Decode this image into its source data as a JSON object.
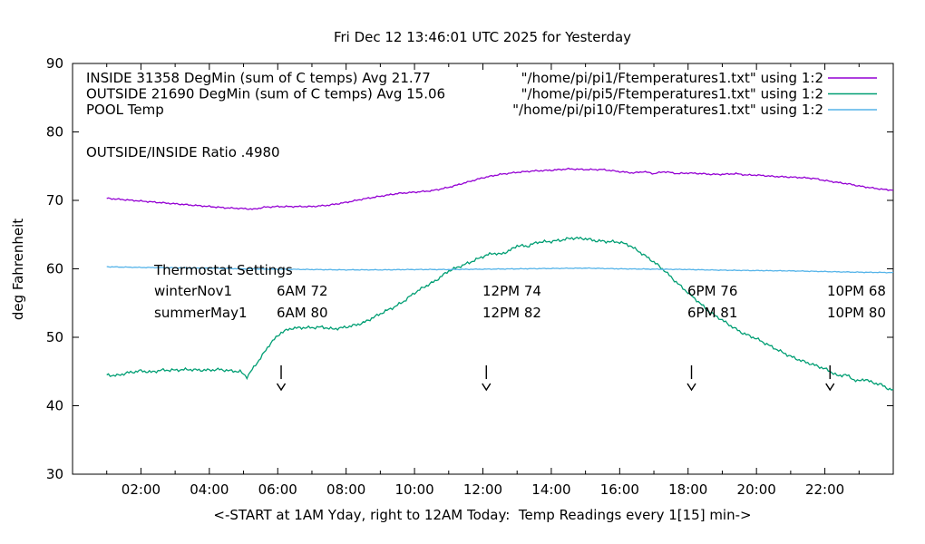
{
  "title": "Fri Dec 12 13:46:01 UTC 2025 for Yesterday",
  "colors": {
    "inside": "#9400d3",
    "outside": "#009e73",
    "pool": "#56b4e9",
    "axis": "#000000"
  },
  "legend": {
    "rows": [
      {
        "label": "INSIDE 31358 DegMin (sum of C temps) Avg 21.77",
        "file": "\"/home/pi/pi1/Ftemperatures1.txt\" using 1:2",
        "series": "inside"
      },
      {
        "label": "OUTSIDE 21690 DegMin (sum of C temps) Avg 15.06",
        "file": "\"/home/pi/pi5/Ftemperatures1.txt\" using 1:2",
        "series": "outside"
      },
      {
        "label": "POOL Temp",
        "file": "\"/home/pi/pi10/Ftemperatures1.txt\" using 1:2",
        "series": "pool"
      }
    ]
  },
  "annotations": {
    "ratio": "OUTSIDE/INSIDE Ratio .4980",
    "thermostat_title": "Thermostat Settings",
    "rows": [
      {
        "name": "winterNov1",
        "c1": "6AM 72",
        "c2": "12PM 74",
        "c3": "6PM 76",
        "c4": "10PM 68"
      },
      {
        "name": "summerMay1",
        "c1": "6AM 80",
        "c2": "12PM 82",
        "c3": "6PM 81",
        "c4": "10PM 80"
      }
    ]
  },
  "axes": {
    "ylabel": "deg Fahrenheit",
    "xlabel": "<-START at 1AM Yday, right to 12AM Today:  Temp Readings every 1[15] min->",
    "xticks": [
      {
        "t": 2,
        "label": "02:00"
      },
      {
        "t": 4,
        "label": "04:00"
      },
      {
        "t": 6,
        "label": "06:00"
      },
      {
        "t": 8,
        "label": "08:00"
      },
      {
        "t": 10,
        "label": "10:00"
      },
      {
        "t": 12,
        "label": "12:00"
      },
      {
        "t": 14,
        "label": "14:00"
      },
      {
        "t": 16,
        "label": "16:00"
      },
      {
        "t": 18,
        "label": "18:00"
      },
      {
        "t": 20,
        "label": "20:00"
      },
      {
        "t": 22,
        "label": "22:00"
      }
    ],
    "yticks": [
      {
        "v": 30,
        "label": "30"
      },
      {
        "v": 40,
        "label": "40"
      },
      {
        "v": 50,
        "label": "50"
      },
      {
        "v": 60,
        "label": "60"
      },
      {
        "v": 70,
        "label": "70"
      },
      {
        "v": 80,
        "label": "80"
      },
      {
        "v": 90,
        "label": "90"
      }
    ]
  },
  "chart_data": {
    "type": "line",
    "title": "Fri Dec 12 13:46:01 UTC 2025 for Yesterday",
    "xlabel": "<-START at 1AM Yday, right to 12AM Today:  Temp Readings every 1[15] min->",
    "ylabel": "deg Fahrenheit",
    "x_unit": "hour of yesterday (1 = 1AM, 24 = midnight)",
    "xlim": [
      0,
      24
    ],
    "ylim": [
      30,
      90
    ],
    "grid": false,
    "legend_position": "top inside, file names right-aligned",
    "series": [
      {
        "id": "inside",
        "name": "INSIDE 31358 DegMin (sum of C temps) Avg 21.77",
        "color": "#9400d3",
        "noise": 1.0,
        "points": [
          [
            1,
            70.3
          ],
          [
            1.5,
            70.1
          ],
          [
            2,
            69.9
          ],
          [
            2.5,
            69.7
          ],
          [
            3,
            69.5
          ],
          [
            3.5,
            69.3
          ],
          [
            4,
            69.1
          ],
          [
            4.5,
            68.9
          ],
          [
            5,
            68.8
          ],
          [
            5.3,
            68.7
          ],
          [
            5.6,
            69.0
          ],
          [
            6,
            69.1
          ],
          [
            6.5,
            69.1
          ],
          [
            7,
            69.1
          ],
          [
            7.5,
            69.3
          ],
          [
            8,
            69.7
          ],
          [
            8.5,
            70.2
          ],
          [
            9,
            70.6
          ],
          [
            9.5,
            71.0
          ],
          [
            10,
            71.2
          ],
          [
            10.5,
            71.4
          ],
          [
            11,
            71.9
          ],
          [
            11.5,
            72.6
          ],
          [
            12,
            73.3
          ],
          [
            12.5,
            73.8
          ],
          [
            13,
            74.1
          ],
          [
            13.5,
            74.3
          ],
          [
            14,
            74.4
          ],
          [
            14.5,
            74.6
          ],
          [
            15,
            74.5
          ],
          [
            15.5,
            74.5
          ],
          [
            16,
            74.2
          ],
          [
            16.4,
            74.0
          ],
          [
            16.7,
            74.2
          ],
          [
            17,
            73.9
          ],
          [
            17.3,
            74.2
          ],
          [
            17.7,
            73.9
          ],
          [
            18,
            74.0
          ],
          [
            18.4,
            73.9
          ],
          [
            18.7,
            73.8
          ],
          [
            19,
            73.8
          ],
          [
            19.4,
            73.9
          ],
          [
            19.7,
            73.7
          ],
          [
            20,
            73.7
          ],
          [
            20.5,
            73.5
          ],
          [
            21,
            73.4
          ],
          [
            21.4,
            73.3
          ],
          [
            21.7,
            73.2
          ],
          [
            22,
            72.9
          ],
          [
            22.4,
            72.6
          ],
          [
            22.7,
            72.4
          ],
          [
            23,
            72.1
          ],
          [
            23.4,
            71.8
          ],
          [
            23.7,
            71.6
          ],
          [
            24,
            71.5
          ]
        ]
      },
      {
        "id": "outside",
        "name": "OUTSIDE 21690 DegMin (sum of C temps) Avg 15.06",
        "color": "#009e73",
        "noise": 2.0,
        "points": [
          [
            1,
            44.5
          ],
          [
            1.3,
            44.4
          ],
          [
            1.6,
            44.8
          ],
          [
            2,
            45.1
          ],
          [
            2.3,
            44.9
          ],
          [
            2.6,
            45.2
          ],
          [
            3,
            45.2
          ],
          [
            3.4,
            45.3
          ],
          [
            3.7,
            45.2
          ],
          [
            4,
            45.2
          ],
          [
            4.3,
            45.3
          ],
          [
            4.6,
            45.1
          ],
          [
            4.9,
            45.0
          ],
          [
            5.1,
            44.2
          ],
          [
            5.3,
            45.6
          ],
          [
            5.5,
            47.0
          ],
          [
            5.8,
            49.2
          ],
          [
            6.1,
            50.7
          ],
          [
            6.4,
            51.3
          ],
          [
            6.7,
            51.4
          ],
          [
            7,
            51.4
          ],
          [
            7.3,
            51.5
          ],
          [
            7.6,
            51.2
          ],
          [
            7.9,
            51.4
          ],
          [
            8.2,
            51.7
          ],
          [
            8.5,
            52.1
          ],
          [
            8.8,
            52.9
          ],
          [
            9.1,
            53.7
          ],
          [
            9.4,
            54.4
          ],
          [
            9.7,
            55.3
          ],
          [
            10,
            56.5
          ],
          [
            10.3,
            57.4
          ],
          [
            10.6,
            58.2
          ],
          [
            11,
            59.7
          ],
          [
            11.3,
            60.3
          ],
          [
            11.6,
            60.9
          ],
          [
            12,
            61.8
          ],
          [
            12.3,
            62.3
          ],
          [
            12.5,
            62.1
          ],
          [
            12.8,
            62.7
          ],
          [
            13,
            63.4
          ],
          [
            13.3,
            63.3
          ],
          [
            13.6,
            63.9
          ],
          [
            14,
            64.0
          ],
          [
            14.3,
            64.2
          ],
          [
            14.6,
            64.5
          ],
          [
            15,
            64.4
          ],
          [
            15.3,
            64.1
          ],
          [
            15.6,
            64.0
          ],
          [
            16,
            63.9
          ],
          [
            16.3,
            63.4
          ],
          [
            16.6,
            62.4
          ],
          [
            17,
            61.0
          ],
          [
            17.3,
            59.8
          ],
          [
            17.6,
            58.3
          ],
          [
            18,
            56.5
          ],
          [
            18.3,
            55.2
          ],
          [
            18.6,
            53.8
          ],
          [
            19,
            52.5
          ],
          [
            19.3,
            51.5
          ],
          [
            19.6,
            50.6
          ],
          [
            20,
            49.8
          ],
          [
            20.3,
            49.0
          ],
          [
            20.6,
            48.2
          ],
          [
            21,
            47.2
          ],
          [
            21.3,
            46.6
          ],
          [
            21.6,
            46.1
          ],
          [
            22,
            45.4
          ],
          [
            22.2,
            44.9
          ],
          [
            22.4,
            44.3
          ],
          [
            22.6,
            44.6
          ],
          [
            22.8,
            43.9
          ],
          [
            23,
            43.6
          ],
          [
            23.2,
            43.9
          ],
          [
            23.4,
            43.3
          ],
          [
            23.6,
            43.2
          ],
          [
            23.8,
            42.6
          ],
          [
            24,
            42.3
          ]
        ]
      },
      {
        "id": "pool",
        "name": "POOL Temp",
        "color": "#56b4e9",
        "noise": 0.5,
        "points": [
          [
            1,
            60.3
          ],
          [
            2,
            60.2
          ],
          [
            3,
            60.15
          ],
          [
            4,
            60.1
          ],
          [
            5,
            60.0
          ],
          [
            6,
            59.95
          ],
          [
            7,
            59.9
          ],
          [
            8,
            59.85
          ],
          [
            9,
            59.85
          ],
          [
            10,
            59.9
          ],
          [
            11,
            59.9
          ],
          [
            12,
            59.95
          ],
          [
            13,
            60.0
          ],
          [
            14,
            60.05
          ],
          [
            15,
            60.1
          ],
          [
            16,
            60.0
          ],
          [
            17,
            59.95
          ],
          [
            18,
            59.9
          ],
          [
            19,
            59.8
          ],
          [
            20,
            59.75
          ],
          [
            21,
            59.7
          ],
          [
            22,
            59.6
          ],
          [
            23,
            59.5
          ],
          [
            24,
            59.45
          ]
        ]
      }
    ],
    "arrows": [
      {
        "t": 6.1,
        "v_from": 45.9,
        "v_to": 43.9
      },
      {
        "t": 12.1,
        "v_from": 45.9,
        "v_to": 43.9
      },
      {
        "t": 18.1,
        "v_from": 45.9,
        "v_to": 43.9
      },
      {
        "t": 22.15,
        "v_from": 45.9,
        "v_to": 43.9
      }
    ]
  }
}
